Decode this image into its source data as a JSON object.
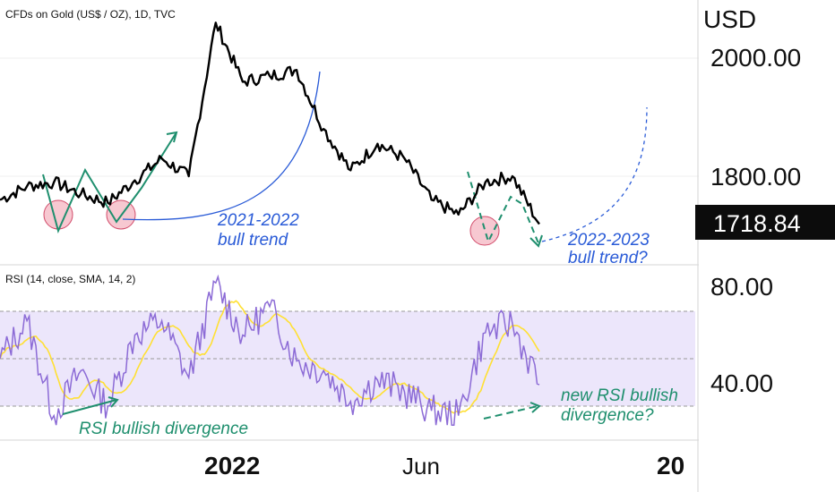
{
  "header": {
    "title": "CFDs on Gold (US$ / OZ), 1D, TVC"
  },
  "price_axis": {
    "currency": "USD",
    "ticks": [
      "2000.00",
      "1800.00"
    ],
    "last_price": "1718.84"
  },
  "rsi_panel": {
    "title": "RSI (14, close, SMA, 14, 2)",
    "ticks": [
      "80.00",
      "40.00"
    ]
  },
  "time_axis": {
    "labels": [
      "2022",
      "Jun",
      "20"
    ]
  },
  "annotations": {
    "bull_2021": [
      "2021-2022",
      "bull trend"
    ],
    "bull_2022": [
      "2022-2023",
      "bull trend?"
    ],
    "rsi_div": "RSI bullish divergence",
    "rsi_new": [
      "new RSI bullish",
      "divergence?"
    ]
  },
  "colors": {
    "price": "#000000",
    "rsi": "#8c6bd6",
    "rsi_ma": "#ffe033",
    "band": "#ece6fb",
    "annot_green": "#1f8f6e",
    "annot_blue": "#2a5bd7",
    "circle": "#f4b6c2",
    "dashed": "#9a9a9a"
  },
  "chart_data": [
    {
      "type": "line",
      "title": "CFDs on Gold (US$ / OZ), 1D, TVC",
      "ylabel": "USD",
      "ylim": [
        1680,
        2080
      ],
      "x": [
        "2021-10",
        "2021-11",
        "2021-11-16",
        "2021-12",
        "2021-12-15",
        "2022-01",
        "2022-01-25",
        "2022-02",
        "2022-03-08",
        "2022-03-20",
        "2022-04",
        "2022-04-18",
        "2022-05",
        "2022-05-16",
        "2022-06",
        "2022-06-14",
        "2022-07",
        "2022-07-21",
        "2022-08",
        "2022-08-17",
        "2022-08-31"
      ],
      "series": [
        {
          "values": [
            1760,
            1783,
            1790,
            1770,
            1755,
            1793,
            1830,
            1800,
            2060,
            1960,
            1970,
            1980,
            1880,
            1810,
            1855,
            1830,
            1760,
            1735,
            1790,
            1800,
            1719
          ]
        }
      ]
    },
    {
      "type": "line",
      "title": "RSI (14, close, SMA, 14, 2)",
      "ylim": [
        20,
        90
      ],
      "x": [
        "2021-10",
        "2021-11",
        "2021-11-16",
        "2021-12",
        "2021-12-15",
        "2022-01",
        "2022-01-25",
        "2022-02",
        "2022-03-08",
        "2022-03-20",
        "2022-04",
        "2022-04-18",
        "2022-05",
        "2022-05-16",
        "2022-06",
        "2022-06-14",
        "2022-07",
        "2022-07-21",
        "2022-08",
        "2022-08-17",
        "2022-08-31"
      ],
      "series": [
        {
          "values": [
            50,
            66,
            26,
            45,
            30,
            60,
            66,
            42,
            82,
            60,
            72,
            49,
            45,
            32,
            41,
            36,
            28,
            26,
            61,
            65,
            39
          ]
        }
      ],
      "bands": [
        30,
        50,
        70
      ]
    }
  ]
}
